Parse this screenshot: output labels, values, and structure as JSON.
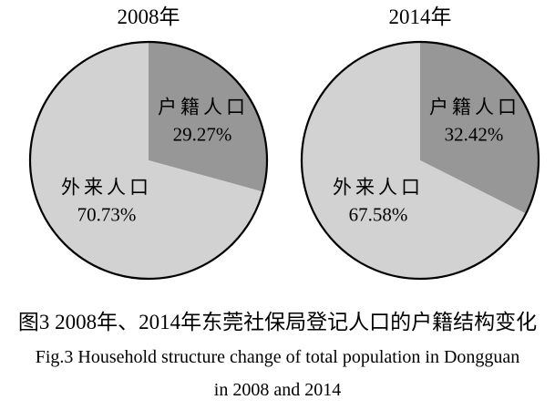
{
  "figure": {
    "caption_zh": "图3  2008年、2014年东莞社保局登记人口的户籍结构变化",
    "caption_en_line1": "Fig.3   Household structure change of total population in Dongguan",
    "caption_en_line2": "in 2008 and 2014"
  },
  "colors": {
    "household": "#979797",
    "migrant": "#d2d2d2",
    "outline": "#000000"
  },
  "chart_data": [
    {
      "type": "pie",
      "title": "2008年",
      "start_angle_deg": 0,
      "direction": "clockwise",
      "slices": [
        {
          "label": "户籍人口",
          "value": 29.27,
          "display": "29.27%",
          "color_key": "household"
        },
        {
          "label": "外来人口",
          "value": 70.73,
          "display": "70.73%",
          "color_key": "migrant"
        }
      ]
    },
    {
      "type": "pie",
      "title": "2014年",
      "start_angle_deg": 0,
      "direction": "clockwise",
      "slices": [
        {
          "label": "户籍人口",
          "value": 32.42,
          "display": "32.42%",
          "color_key": "household"
        },
        {
          "label": "外来人口",
          "value": 67.58,
          "display": "67.58%",
          "color_key": "migrant"
        }
      ]
    }
  ]
}
